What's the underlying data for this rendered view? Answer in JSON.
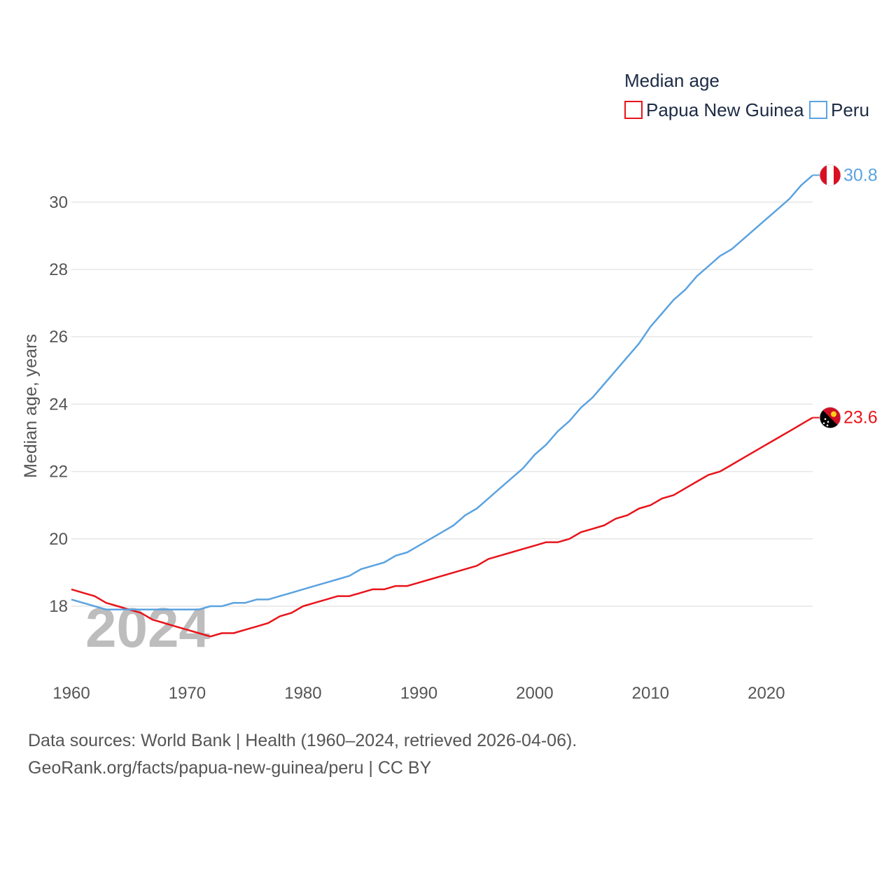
{
  "chart_data": {
    "type": "line",
    "legend_title": "Median age",
    "ylabel": "Median age, years",
    "year_overlay": "2024",
    "xlim": [
      1960,
      2024
    ],
    "ylim": [
      16,
      31.5
    ],
    "x_ticks": [
      1960,
      1970,
      1980,
      1990,
      2000,
      2010,
      2020
    ],
    "y_ticks": [
      18,
      20,
      22,
      24,
      26,
      28,
      30
    ],
    "x": [
      1960,
      1961,
      1962,
      1963,
      1964,
      1965,
      1966,
      1967,
      1968,
      1969,
      1970,
      1971,
      1972,
      1973,
      1974,
      1975,
      1976,
      1977,
      1978,
      1979,
      1980,
      1981,
      1982,
      1983,
      1984,
      1985,
      1986,
      1987,
      1988,
      1989,
      1990,
      1991,
      1992,
      1993,
      1994,
      1995,
      1996,
      1997,
      1998,
      1999,
      2000,
      2001,
      2002,
      2003,
      2004,
      2005,
      2006,
      2007,
      2008,
      2009,
      2010,
      2011,
      2012,
      2013,
      2014,
      2015,
      2016,
      2017,
      2018,
      2019,
      2020,
      2021,
      2022,
      2023,
      2024
    ],
    "series": [
      {
        "name": "Papua New Guinea",
        "color": "#e8141a",
        "end_label": "23.6",
        "flag": "png-flag",
        "values": [
          18.5,
          18.4,
          18.3,
          18.1,
          18.0,
          17.9,
          17.8,
          17.6,
          17.5,
          17.4,
          17.3,
          17.2,
          17.1,
          17.2,
          17.2,
          17.3,
          17.4,
          17.5,
          17.7,
          17.8,
          18.0,
          18.1,
          18.2,
          18.3,
          18.3,
          18.4,
          18.5,
          18.5,
          18.6,
          18.6,
          18.7,
          18.8,
          18.9,
          19.0,
          19.1,
          19.2,
          19.4,
          19.5,
          19.6,
          19.7,
          19.8,
          19.9,
          19.9,
          20.0,
          20.2,
          20.3,
          20.4,
          20.6,
          20.7,
          20.9,
          21.0,
          21.2,
          21.3,
          21.5,
          21.7,
          21.9,
          22.0,
          22.2,
          22.4,
          22.6,
          22.8,
          23.0,
          23.2,
          23.4,
          23.6
        ]
      },
      {
        "name": "Peru",
        "color": "#5ba3e0",
        "end_label": "30.8",
        "flag": "peru-flag",
        "values": [
          18.2,
          18.1,
          18.0,
          17.9,
          17.9,
          17.9,
          17.9,
          17.9,
          17.9,
          17.9,
          17.9,
          17.9,
          18.0,
          18.0,
          18.1,
          18.1,
          18.2,
          18.2,
          18.3,
          18.4,
          18.5,
          18.6,
          18.7,
          18.8,
          18.9,
          19.1,
          19.2,
          19.3,
          19.5,
          19.6,
          19.8,
          20.0,
          20.2,
          20.4,
          20.7,
          20.9,
          21.2,
          21.5,
          21.8,
          22.1,
          22.5,
          22.8,
          23.2,
          23.5,
          23.9,
          24.2,
          24.6,
          25.0,
          25.4,
          25.8,
          26.3,
          26.7,
          27.1,
          27.4,
          27.8,
          28.1,
          28.4,
          28.6,
          28.9,
          29.2,
          29.5,
          29.8,
          30.1,
          30.5,
          30.8
        ]
      }
    ]
  },
  "source": {
    "line1": "Data sources: World Bank | Health (1960–2024, retrieved 2026-04-06).",
    "line2": "GeoRank.org/facts/papua-new-guinea/peru | CC BY"
  }
}
